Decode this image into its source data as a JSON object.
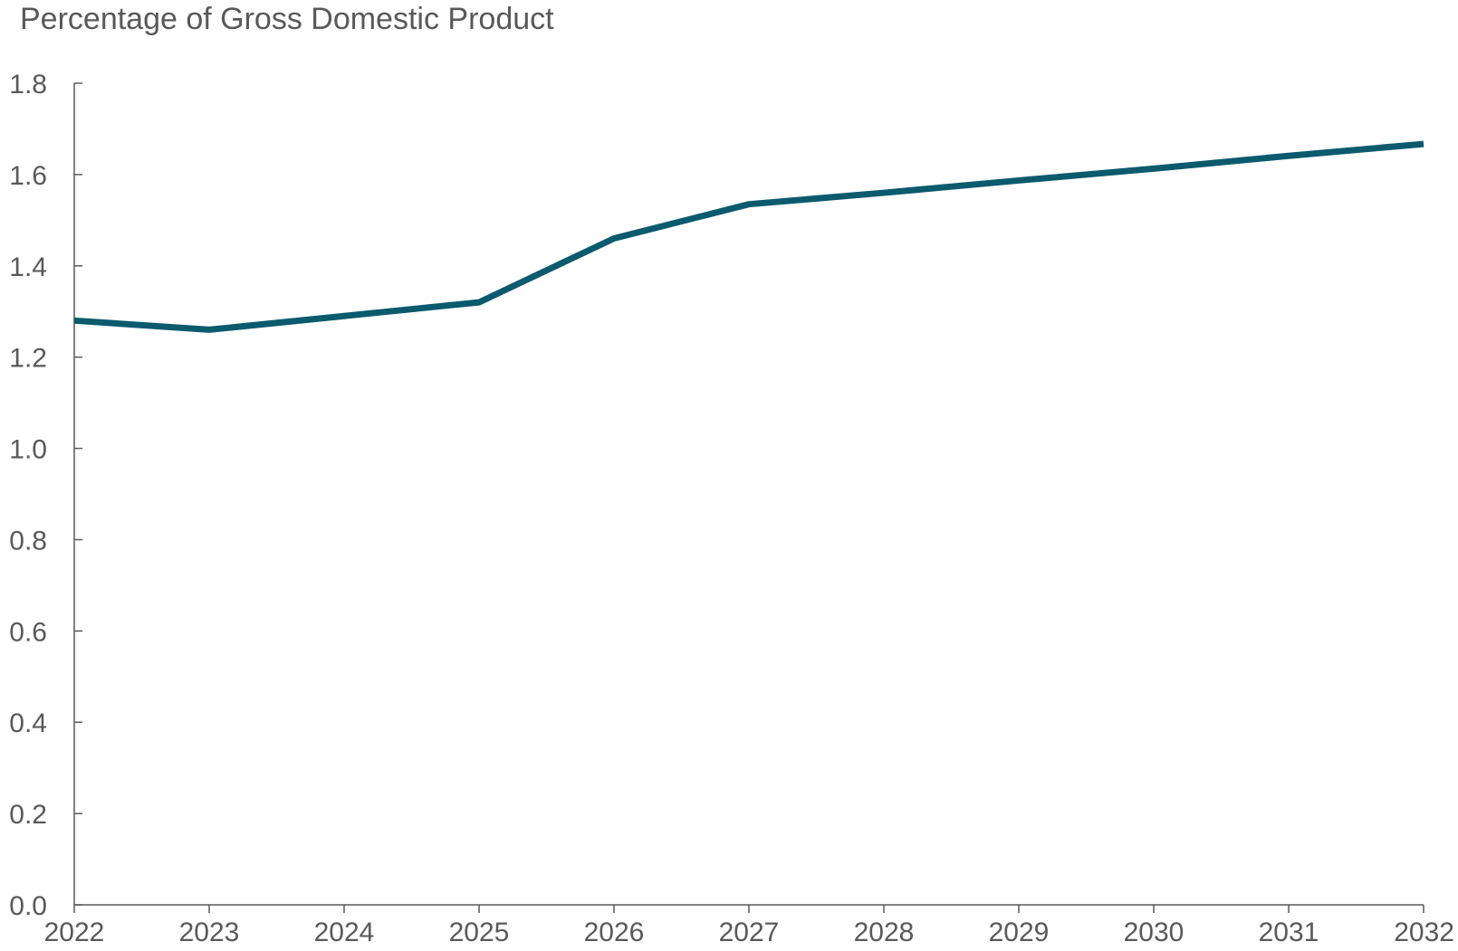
{
  "chart_data": {
    "type": "line",
    "title": "Percentage of Gross Domestic Product",
    "xlabel": "",
    "ylabel": "",
    "x": [
      2022,
      2023,
      2024,
      2025,
      2026,
      2027,
      2028,
      2029,
      2030,
      2031,
      2032
    ],
    "x_tick_labels": [
      "2022",
      "2023",
      "2024",
      "2025",
      "2026",
      "2027",
      "2028",
      "2029",
      "2030",
      "2031",
      "2032"
    ],
    "y_tick_labels": [
      "0.0",
      "0.2",
      "0.4",
      "0.6",
      "0.8",
      "1.0",
      "1.2",
      "1.4",
      "1.6",
      "1.8"
    ],
    "y_ticks": [
      0.0,
      0.2,
      0.4,
      0.6,
      0.8,
      1.0,
      1.2,
      1.4,
      1.6,
      1.8
    ],
    "ylim": [
      0,
      1.8
    ],
    "xlim": [
      2022,
      2032
    ],
    "grid": false,
    "legend": "none",
    "series": [
      {
        "values": [
          1.28,
          1.26,
          1.29,
          1.32,
          1.46,
          1.535,
          1.56,
          1.587,
          1.613,
          1.641,
          1.667
        ],
        "color": "#0b5a6e"
      }
    ],
    "colors": {
      "text": "#595959",
      "axis": "#595959",
      "line": "#0b5a6e"
    }
  }
}
